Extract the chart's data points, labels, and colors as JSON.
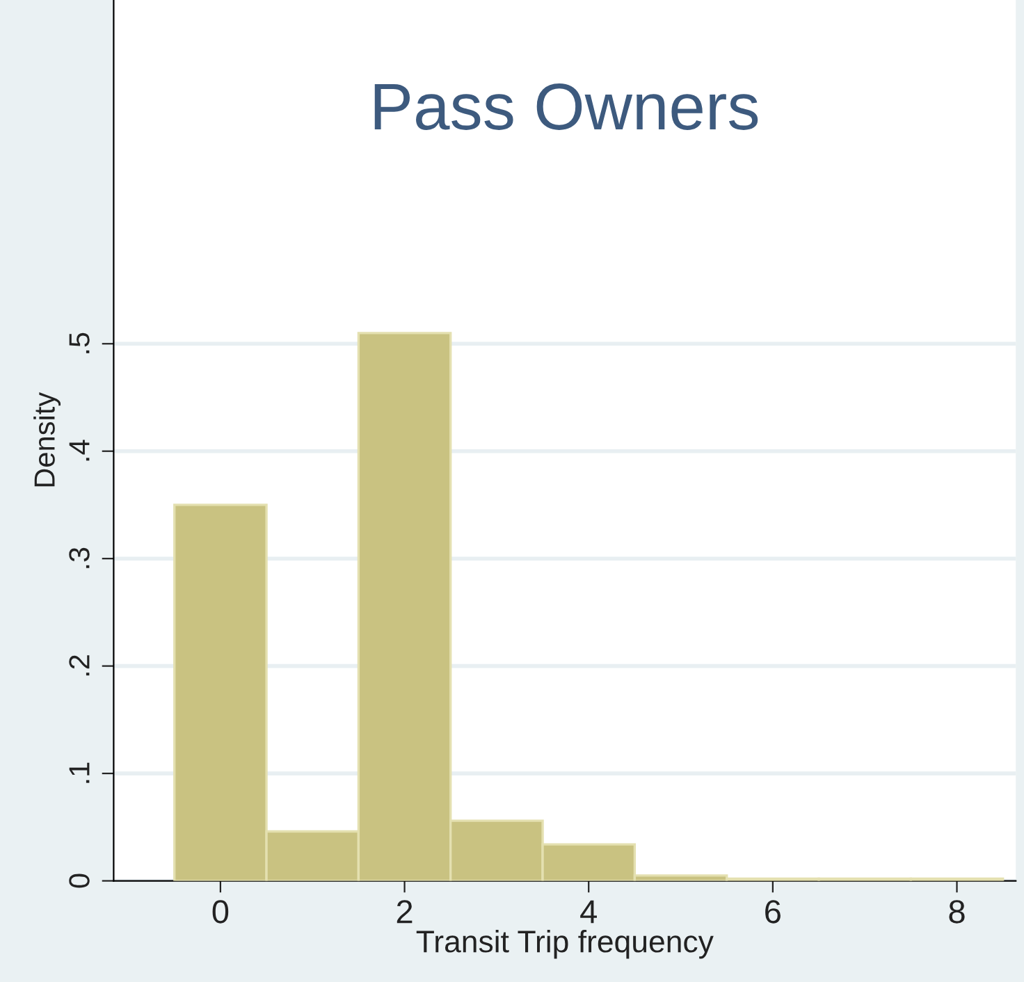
{
  "chart_data": {
    "type": "histogram",
    "title": "Pass Owners",
    "xlabel": "Transit Trip frequency",
    "ylabel": "Density",
    "bins": [
      -0.5,
      0.5,
      1.5,
      2.5,
      3.5,
      4.5,
      5.5,
      6.5,
      7.5,
      8.5
    ],
    "values": [
      0.35,
      0.046,
      0.51,
      0.056,
      0.034,
      0.005,
      0.002,
      0.002,
      0.002
    ],
    "color": "#c9c281",
    "xlim": [
      -1.16,
      8.64
    ],
    "xticks": [
      0,
      2,
      4,
      6,
      8
    ],
    "ylim": [
      0,
      0.82
    ],
    "yticks": [
      {
        "value": 0,
        "label": "0"
      },
      {
        "value": 0.1,
        "label": ".1"
      },
      {
        "value": 0.2,
        "label": ".2"
      },
      {
        "value": 0.3,
        "label": ".3"
      },
      {
        "value": 0.4,
        "label": ".4"
      },
      {
        "value": 0.5,
        "label": ".5"
      }
    ],
    "grid": "y"
  }
}
